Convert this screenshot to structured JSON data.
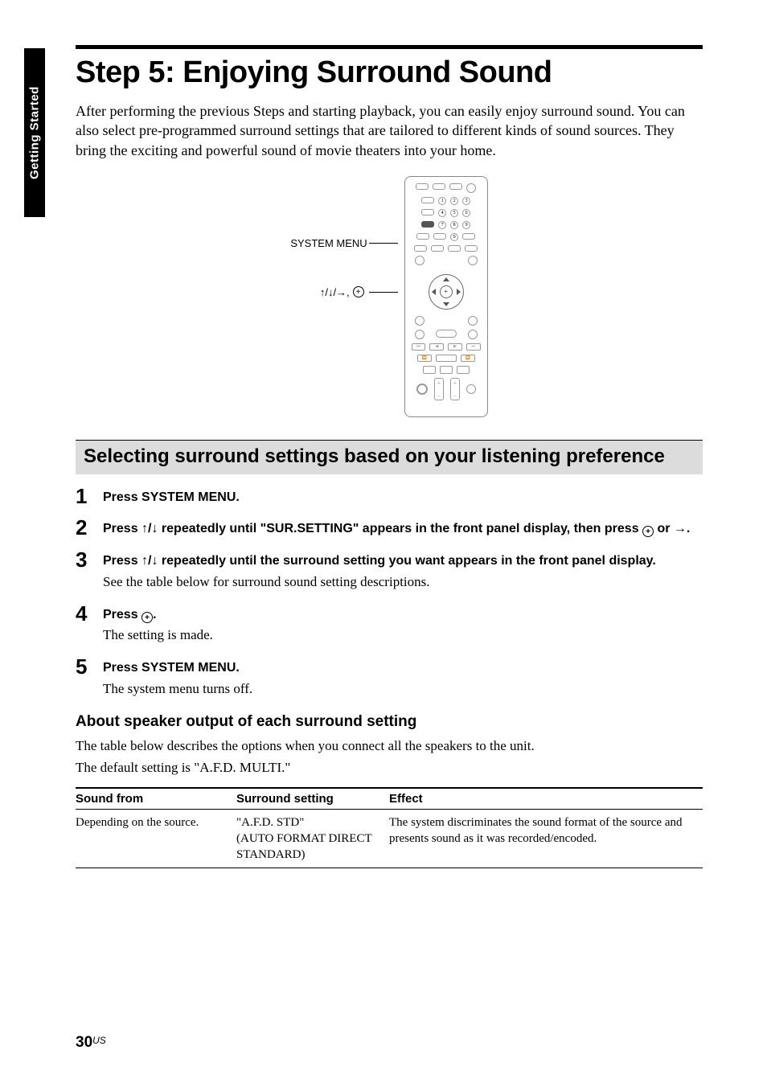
{
  "side_tab": "Getting Started",
  "title": "Step 5: Enjoying Surround Sound",
  "intro": "After performing the previous Steps and starting playback, you can easily enjoy surround sound. You can also select pre-programmed surround settings that are tailored to different kinds of sound sources. They bring the exciting and powerful sound of movie theaters into your home.",
  "diagram": {
    "label_system_menu": "SYSTEM MENU",
    "label_nav": "↑/↓/→, "
  },
  "section_heading": "Selecting surround settings based on your listening preference",
  "steps": [
    {
      "num": "1",
      "bold": "Press SYSTEM MENU."
    },
    {
      "num": "2",
      "bold_pre": "Press ↑/↓ repeatedly until \"SUR.SETTING\" appears in the front panel display, then press ",
      "bold_post": " or →."
    },
    {
      "num": "3",
      "bold": "Press ↑/↓ repeatedly until the surround setting you want appears in the front panel display.",
      "plain": "See the table below for surround sound setting descriptions."
    },
    {
      "num": "4",
      "bold_pre": "Press ",
      "bold_post": ".",
      "plain": "The setting is made."
    },
    {
      "num": "5",
      "bold": "Press SYSTEM MENU.",
      "plain": "The system menu turns off."
    }
  ],
  "about_heading": "About speaker output of each surround setting",
  "about_p1": "The table below describes the options when you connect all the speakers to the unit.",
  "about_p2": "The default setting is \"A.F.D. MULTI.\"",
  "table": {
    "headers": [
      "Sound from",
      "Surround setting",
      "Effect"
    ],
    "rows": [
      {
        "sound_from": "Depending on the source.",
        "setting_line1": "\"A.F.D. STD\"",
        "setting_line2": "(AUTO FORMAT DIRECT STANDARD)",
        "effect": "The system discriminates the sound format of the source and presents sound as it was recorded/encoded."
      }
    ]
  },
  "footer": {
    "page": "30",
    "locale": "US"
  },
  "colors": {
    "text": "#000000",
    "bg": "#ffffff",
    "section_bg": "#dcdcdc",
    "remote_border": "#888888"
  }
}
